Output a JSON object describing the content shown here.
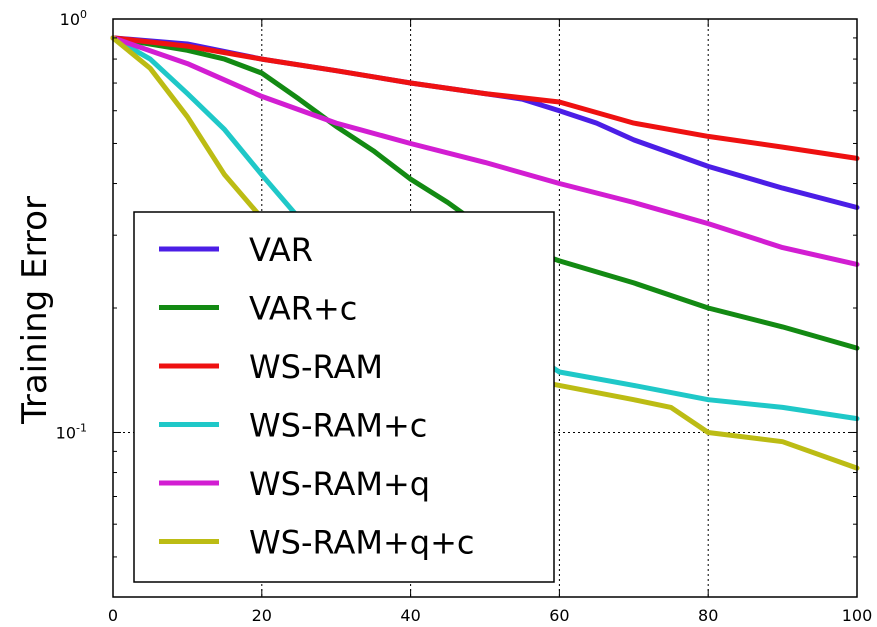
{
  "chart_data": {
    "type": "line",
    "title": "",
    "xlabel": "",
    "ylabel": "Training Error",
    "xlim": [
      0,
      100
    ],
    "ylim": [
      0.04,
      1.0
    ],
    "yscale": "log",
    "xticks": [
      "0",
      "20",
      "40",
      "60",
      "80",
      "100"
    ],
    "yticks": [
      {
        "base": "10",
        "exp": "-1",
        "value": 0.1
      },
      {
        "base": "10",
        "exp": "0",
        "value": 1.0
      }
    ],
    "grid": {
      "visible": true,
      "style": "dotted",
      "x_at": [
        20,
        40,
        60,
        80
      ],
      "y_at": [
        0.1
      ]
    },
    "legend": {
      "position": "lower-left",
      "entries": [
        "VAR",
        "VAR+c",
        "WS-RAM",
        "WS-RAM+c",
        "WS-RAM+q",
        "WS-RAM+q+c"
      ]
    },
    "series": [
      {
        "name": "VAR",
        "color": "#4b1ee6",
        "x": [
          0,
          10,
          20,
          30,
          40,
          50,
          55,
          60,
          65,
          70,
          80,
          90,
          100
        ],
        "y": [
          0.9,
          0.87,
          0.8,
          0.75,
          0.7,
          0.66,
          0.64,
          0.6,
          0.56,
          0.51,
          0.44,
          0.39,
          0.35
        ]
      },
      {
        "name": "VAR+c",
        "color": "#138a13",
        "x": [
          0,
          10,
          15,
          20,
          25,
          30,
          35,
          40,
          45,
          50,
          55,
          60,
          70,
          80,
          90,
          100
        ],
        "y": [
          0.9,
          0.84,
          0.8,
          0.74,
          0.64,
          0.55,
          0.48,
          0.41,
          0.36,
          0.31,
          0.28,
          0.26,
          0.23,
          0.2,
          0.18,
          0.16
        ]
      },
      {
        "name": "WS-RAM",
        "color": "#ee1111",
        "x": [
          0,
          10,
          20,
          30,
          40,
          50,
          60,
          70,
          80,
          90,
          100
        ],
        "y": [
          0.9,
          0.86,
          0.8,
          0.75,
          0.7,
          0.66,
          0.63,
          0.56,
          0.52,
          0.49,
          0.46
        ]
      },
      {
        "name": "WS-RAM+c",
        "color": "#1fc8c8",
        "x": [
          0,
          5,
          10,
          15,
          20,
          25,
          30,
          35,
          40,
          50,
          55,
          60,
          70,
          80,
          90,
          100
        ],
        "y": [
          0.9,
          0.8,
          0.66,
          0.54,
          0.42,
          0.33,
          0.27,
          0.22,
          0.19,
          0.17,
          0.16,
          0.14,
          0.13,
          0.12,
          0.115,
          0.108
        ]
      },
      {
        "name": "WS-RAM+q",
        "color": "#d21ed2",
        "x": [
          0,
          10,
          20,
          30,
          40,
          50,
          60,
          70,
          80,
          90,
          100
        ],
        "y": [
          0.9,
          0.78,
          0.65,
          0.56,
          0.5,
          0.45,
          0.4,
          0.36,
          0.32,
          0.28,
          0.255
        ]
      },
      {
        "name": "WS-RAM+q+c",
        "color": "#bcbc14",
        "x": [
          0,
          5,
          10,
          15,
          20,
          25,
          30,
          35,
          40,
          50,
          55,
          60,
          70,
          75,
          80,
          90,
          100
        ],
        "y": [
          0.9,
          0.76,
          0.58,
          0.42,
          0.33,
          0.28,
          0.23,
          0.2,
          0.18,
          0.15,
          0.135,
          0.13,
          0.12,
          0.115,
          0.1,
          0.095,
          0.082
        ]
      }
    ]
  }
}
